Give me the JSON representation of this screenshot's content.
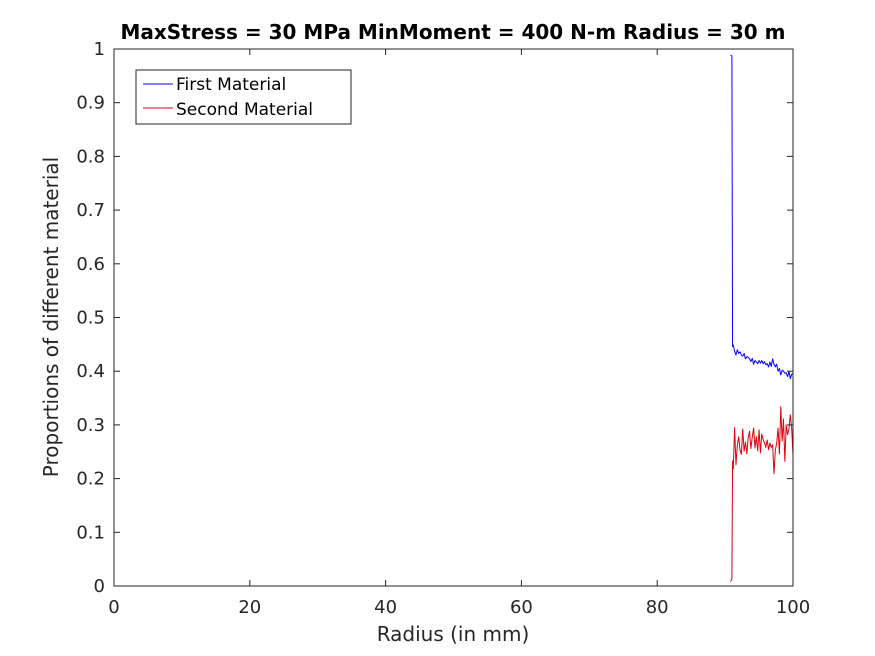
{
  "chart_data": {
    "type": "line",
    "title": "MaxStress = 30 MPa MinMoment = 400 N-m Radius = 30 m",
    "xlabel": "Radius (in mm)",
    "ylabel": "Proportions of different material",
    "xlim": [
      0,
      100
    ],
    "ylim": [
      0,
      1
    ],
    "xticks": [
      0,
      20,
      40,
      60,
      80,
      100
    ],
    "xtick_labels": [
      "0",
      "20",
      "40",
      "60",
      "80",
      "100"
    ],
    "yticks": [
      0,
      0.1,
      0.2,
      0.3,
      0.4,
      0.5,
      0.6,
      0.7,
      0.8,
      0.9,
      1
    ],
    "ytick_labels": [
      "0",
      "0.1",
      "0.2",
      "0.3",
      "0.4",
      "0.5",
      "0.6",
      "0.7",
      "0.8",
      "0.9",
      "1"
    ],
    "grid": false,
    "legend_position": "top-left",
    "series": [
      {
        "name": "First Material",
        "color": "#0000ff",
        "x": [
          90.8,
          91.0,
          91.1,
          91.2,
          91.4,
          91.6,
          91.8,
          92.0,
          92.2,
          92.4,
          92.6,
          92.8,
          93.0,
          93.2,
          93.4,
          93.6,
          93.8,
          94.0,
          94.2,
          94.4,
          94.6,
          94.8,
          95.0,
          95.2,
          95.4,
          95.6,
          95.8,
          96.0,
          96.2,
          96.4,
          96.6,
          96.8,
          97.0,
          97.2,
          97.4,
          97.6,
          97.8,
          98.0,
          98.2,
          98.4,
          98.6,
          98.8,
          99.0,
          99.2,
          99.4,
          99.6,
          99.8,
          100.0
        ],
        "values": [
          0.989,
          0.987,
          0.446,
          0.449,
          0.437,
          0.43,
          0.44,
          0.433,
          0.436,
          0.43,
          0.428,
          0.433,
          0.423,
          0.427,
          0.426,
          0.423,
          0.418,
          0.424,
          0.413,
          0.42,
          0.417,
          0.414,
          0.42,
          0.415,
          0.42,
          0.414,
          0.418,
          0.412,
          0.414,
          0.408,
          0.417,
          0.409,
          0.423,
          0.413,
          0.408,
          0.413,
          0.4,
          0.405,
          0.393,
          0.402,
          0.4,
          0.396,
          0.397,
          0.39,
          0.4,
          0.386,
          0.394,
          0.396
        ]
      },
      {
        "name": "Second Material",
        "color": "#e0000e",
        "x": [
          90.8,
          91.0,
          91.1,
          91.2,
          91.4,
          91.6,
          91.8,
          92.0,
          92.2,
          92.4,
          92.6,
          92.8,
          93.0,
          93.2,
          93.4,
          93.6,
          93.8,
          94.0,
          94.2,
          94.4,
          94.6,
          94.8,
          95.0,
          95.2,
          95.4,
          95.6,
          95.8,
          96.0,
          96.2,
          96.4,
          96.6,
          96.8,
          97.0,
          97.2,
          97.4,
          97.6,
          97.8,
          98.0,
          98.2,
          98.4,
          98.6,
          98.8,
          99.0,
          99.2,
          99.4,
          99.6,
          99.8,
          100.0
        ],
        "values": [
          0.008,
          0.013,
          0.233,
          0.218,
          0.295,
          0.226,
          0.262,
          0.278,
          0.253,
          0.245,
          0.292,
          0.251,
          0.268,
          0.246,
          0.276,
          0.288,
          0.256,
          0.277,
          0.294,
          0.257,
          0.278,
          0.252,
          0.291,
          0.248,
          0.283,
          0.273,
          0.267,
          0.258,
          0.272,
          0.254,
          0.266,
          0.258,
          0.263,
          0.209,
          0.253,
          0.266,
          0.294,
          0.246,
          0.334,
          0.27,
          0.311,
          0.232,
          0.3,
          0.282,
          0.292,
          0.319,
          0.295,
          0.243
        ]
      }
    ]
  }
}
